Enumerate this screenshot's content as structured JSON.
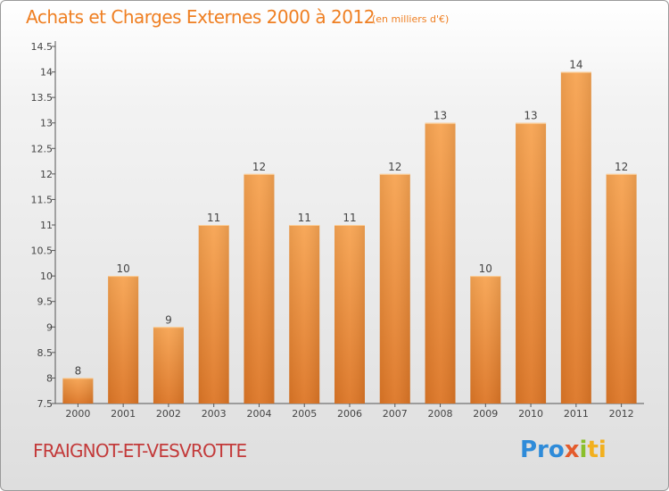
{
  "title": "Achats et Charges Externes 2000 à 2012",
  "unit": "(en milliers d'€)",
  "commune": "FRAIGNOT-ET-VESVROTTE",
  "logo": {
    "p1": "Pro",
    "p2": "x",
    "p3": "i",
    "p4": "ti"
  },
  "colors": {
    "bar_light": "#f7a452",
    "bar_dark": "#dd7626",
    "accent": "#ef7f22"
  },
  "chart_data": {
    "type": "bar",
    "categories": [
      "2000",
      "2001",
      "2002",
      "2003",
      "2004",
      "2005",
      "2006",
      "2007",
      "2008",
      "2009",
      "2010",
      "2011",
      "2012"
    ],
    "values": [
      8,
      10,
      9,
      11,
      12,
      11,
      11,
      12,
      13,
      10,
      13,
      14,
      12
    ],
    "value_labels": [
      "8",
      "10",
      "9",
      "11",
      "12",
      "11",
      "11",
      "12",
      "13",
      "10",
      "13",
      "14",
      "12"
    ],
    "yticks": [
      "7.5",
      "8",
      "8.5",
      "9",
      "9.5",
      "10",
      "10.5",
      "11",
      "11.5",
      "12",
      "12.5",
      "13",
      "13.5",
      "14",
      "14.5"
    ],
    "ylim": [
      7.5,
      14.5
    ],
    "grid": false,
    "title": "Achats et Charges Externes 2000 à 2012",
    "xlabel": "",
    "ylabel": ""
  }
}
